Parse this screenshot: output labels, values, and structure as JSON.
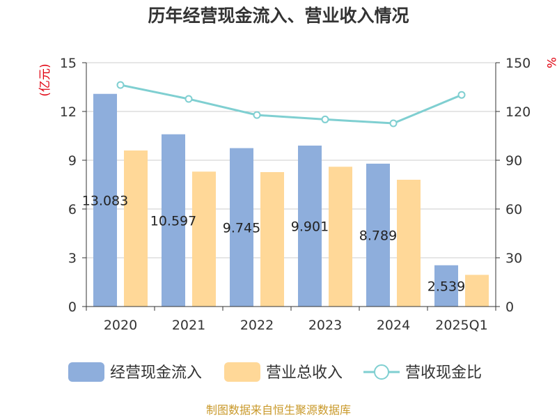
{
  "chart_data": {
    "type": "bar",
    "title": "历年经营现金流入、营业收入情况",
    "categories": [
      "2020",
      "2021",
      "2022",
      "2023",
      "2024",
      "2025Q1"
    ],
    "series": [
      {
        "name": "经营现金流入",
        "axis": "left",
        "type": "bar",
        "color": "#8eaedc",
        "values": [
          13.083,
          10.597,
          9.745,
          9.901,
          8.789,
          2.539
        ],
        "labels": [
          "13.083",
          "10.597",
          "9.745",
          "9.901",
          "8.789",
          "2.539"
        ]
      },
      {
        "name": "营业总收入",
        "axis": "left",
        "type": "bar",
        "color": "#ffd898",
        "values": [
          9.6,
          8.3,
          8.27,
          8.6,
          7.8,
          1.95
        ]
      },
      {
        "name": "营收现金比",
        "axis": "right",
        "type": "line",
        "color": "#7fcfd1",
        "values": [
          136.3,
          127.7,
          117.8,
          115.1,
          112.7,
          130.2
        ]
      }
    ],
    "y_left": {
      "unit": "(亿元)",
      "ylim": [
        0,
        15
      ],
      "ticks": [
        "0",
        "3",
        "6",
        "9",
        "12",
        "15"
      ]
    },
    "y_right": {
      "unit": "%",
      "ylim": [
        0,
        150
      ],
      "ticks": [
        "0",
        "30",
        "60",
        "90",
        "120",
        "150"
      ]
    },
    "grid": true,
    "legend_position": "bottom"
  },
  "source_text": "制图数据来自恒生聚源数据库"
}
